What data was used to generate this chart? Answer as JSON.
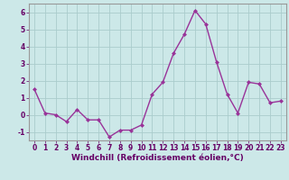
{
  "x": [
    0,
    1,
    2,
    3,
    4,
    5,
    6,
    7,
    8,
    9,
    10,
    11,
    12,
    13,
    14,
    15,
    16,
    17,
    18,
    19,
    20,
    21,
    22,
    23
  ],
  "y": [
    1.5,
    0.1,
    0.0,
    -0.4,
    0.3,
    -0.3,
    -0.3,
    -1.3,
    -0.9,
    -0.9,
    -0.6,
    1.2,
    1.9,
    3.6,
    4.7,
    6.1,
    5.3,
    3.1,
    1.2,
    0.1,
    1.9,
    1.8,
    0.7,
    0.8
  ],
  "line_color": "#993399",
  "marker": "D",
  "marker_size": 2.0,
  "bg_color": "#cce8e8",
  "grid_color": "#aacccc",
  "xlabel": "Windchill (Refroidissement éolien,°C)",
  "xlim": [
    -0.5,
    23.5
  ],
  "ylim": [
    -1.5,
    6.5
  ],
  "yticks": [
    -1,
    0,
    1,
    2,
    3,
    4,
    5,
    6
  ],
  "xticks": [
    0,
    1,
    2,
    3,
    4,
    5,
    6,
    7,
    8,
    9,
    10,
    11,
    12,
    13,
    14,
    15,
    16,
    17,
    18,
    19,
    20,
    21,
    22,
    23
  ],
  "tick_fontsize": 5.5,
  "xlabel_fontsize": 6.5,
  "line_width": 1.0,
  "axis_color": "#660066",
  "spine_color": "#999999"
}
